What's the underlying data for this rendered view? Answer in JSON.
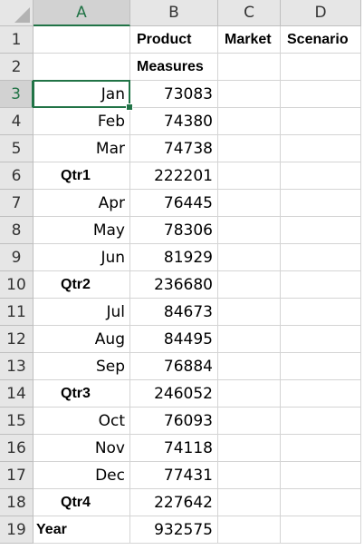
{
  "columns": [
    "A",
    "B",
    "C",
    "D"
  ],
  "rows": [
    "1",
    "2",
    "3",
    "4",
    "5",
    "6",
    "7",
    "8",
    "9",
    "10",
    "11",
    "12",
    "13",
    "14",
    "15",
    "16",
    "17",
    "18",
    "19"
  ],
  "dimension_headers": {
    "product": "Product",
    "measures": "Measures",
    "market": "Market",
    "scenario": "Scenario"
  },
  "members": [
    {
      "label": "Jan",
      "value": "73083",
      "kind": "month"
    },
    {
      "label": "Feb",
      "value": "74380",
      "kind": "month"
    },
    {
      "label": "Mar",
      "value": "74738",
      "kind": "month"
    },
    {
      "label": "Qtr1",
      "value": "222201",
      "kind": "qtr"
    },
    {
      "label": "Apr",
      "value": "76445",
      "kind": "month"
    },
    {
      "label": "May",
      "value": "78306",
      "kind": "month"
    },
    {
      "label": "Jun",
      "value": "81929",
      "kind": "month"
    },
    {
      "label": "Qtr2",
      "value": "236680",
      "kind": "qtr"
    },
    {
      "label": "Jul",
      "value": "84673",
      "kind": "month"
    },
    {
      "label": "Aug",
      "value": "84495",
      "kind": "month"
    },
    {
      "label": "Sep",
      "value": "76884",
      "kind": "month"
    },
    {
      "label": "Qtr3",
      "value": "246052",
      "kind": "qtr"
    },
    {
      "label": "Oct",
      "value": "76093",
      "kind": "month"
    },
    {
      "label": "Nov",
      "value": "74118",
      "kind": "month"
    },
    {
      "label": "Dec",
      "value": "77431",
      "kind": "month"
    },
    {
      "label": "Qtr4",
      "value": "227642",
      "kind": "qtr"
    },
    {
      "label": "Year",
      "value": "932575",
      "kind": "year"
    }
  ],
  "active_cell": "A3",
  "theme": {
    "accent": "#217346",
    "header_bg": "#e6e6e6",
    "grid_line": "#d4d4d4"
  }
}
